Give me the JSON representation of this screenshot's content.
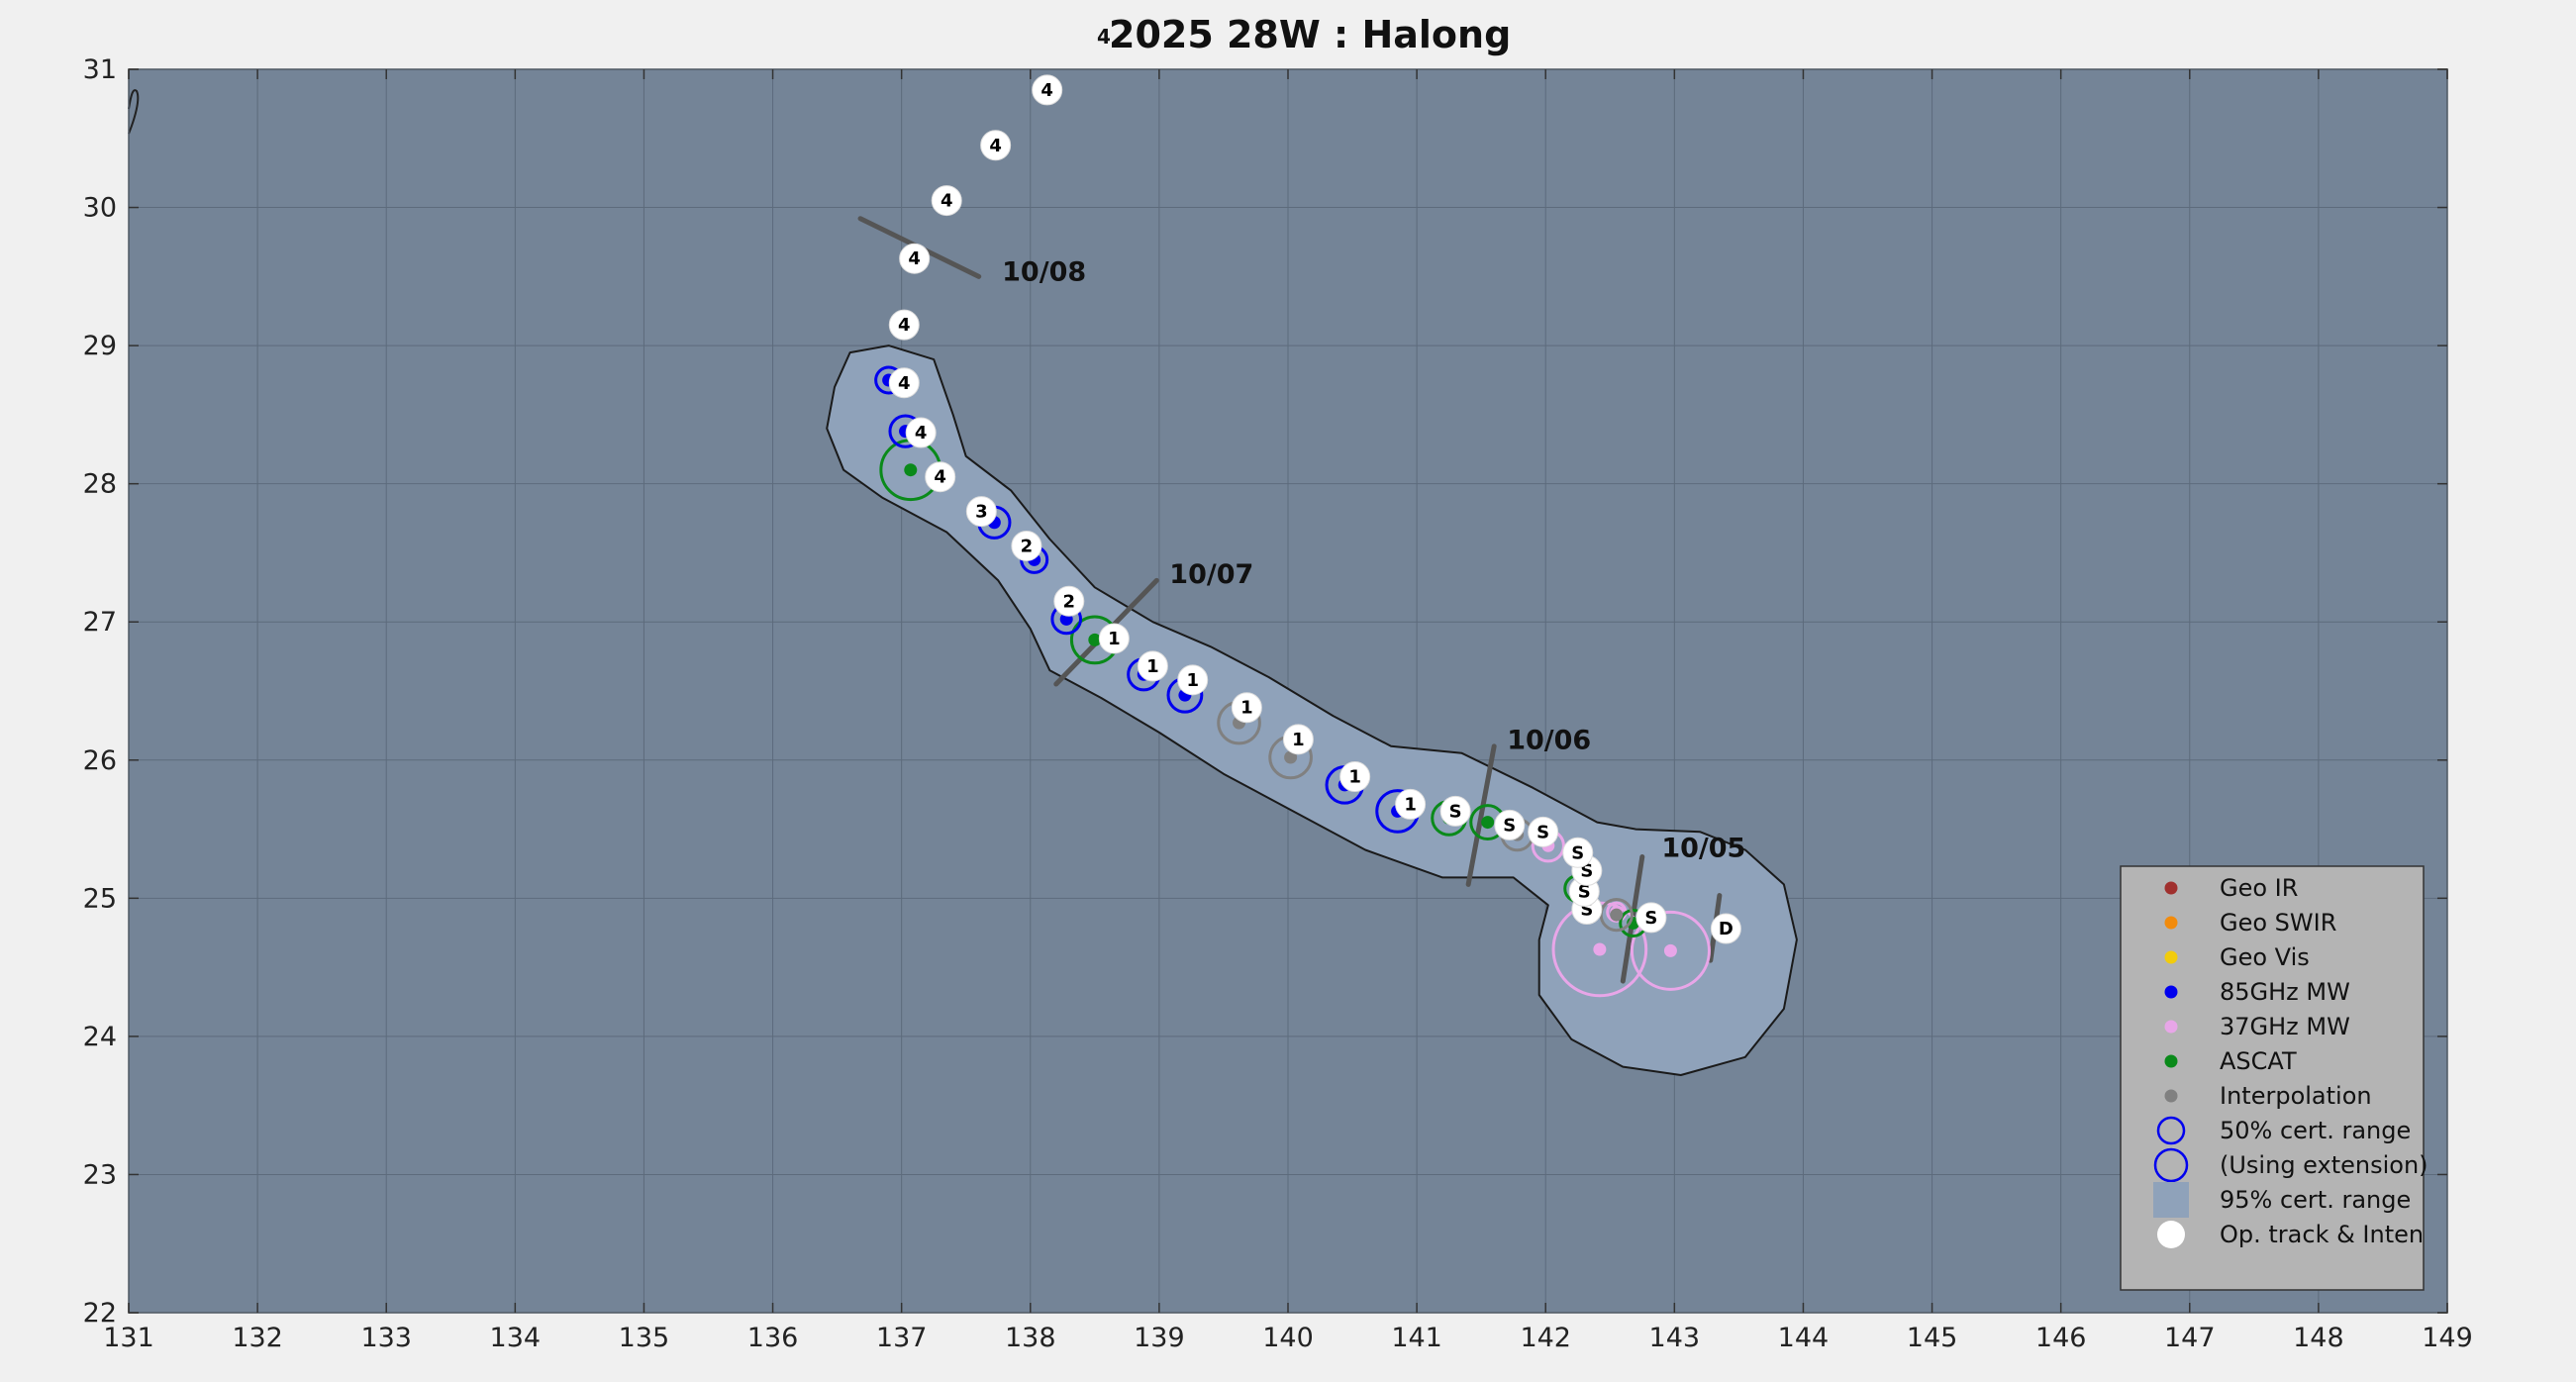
{
  "chart_data": {
    "type": "scatter",
    "title_sup": "4",
    "title": "2025  28W :  Halong",
    "xlim": [
      131,
      149
    ],
    "ylim": [
      22,
      31
    ],
    "x_ticks": [
      "131",
      "132",
      "133",
      "134",
      "135",
      "136",
      "137",
      "138",
      "139",
      "140",
      "141",
      "142",
      "143",
      "144",
      "145",
      "146",
      "147",
      "148",
      "149"
    ],
    "y_ticks": [
      "22",
      "23",
      "24",
      "25",
      "26",
      "27",
      "28",
      "29",
      "30",
      "31"
    ],
    "grid": true,
    "legend_position": "bottom-right",
    "legend": [
      {
        "label": "Geo IR",
        "symbol": "dot",
        "color": "#a0302e"
      },
      {
        "label": "Geo SWIR",
        "symbol": "dot",
        "color": "#f28b0c"
      },
      {
        "label": "Geo Vis",
        "symbol": "dot",
        "color": "#f2cc0c"
      },
      {
        "label": "85GHz MW",
        "symbol": "dot",
        "color": "#0000ee"
      },
      {
        "label": "37GHz MW",
        "symbol": "dot",
        "color": "#e8a6e8"
      },
      {
        "label": "ASCAT",
        "symbol": "dot",
        "color": "#0a8a1a"
      },
      {
        "label": "Interpolation",
        "symbol": "dot",
        "color": "#808080"
      },
      {
        "label": "50% cert. range",
        "symbol": "ring",
        "color": "#0000ee"
      },
      {
        "label": "(Using extension)",
        "symbol": "ring-large",
        "color": "#0000ee"
      },
      {
        "label": "95% cert. range",
        "symbol": "square",
        "color": "#8fa2ba"
      },
      {
        "label": "Op. track & Inten",
        "symbol": "white-dot",
        "color": "#ffffff"
      }
    ],
    "op_track": [
      {
        "lon": 143.4,
        "lat": 24.78,
        "label": "D"
      },
      {
        "lon": 142.82,
        "lat": 24.86,
        "label": "S"
      },
      {
        "lon": 142.32,
        "lat": 24.92,
        "label": "S"
      },
      {
        "lon": 142.3,
        "lat": 25.05,
        "label": "S"
      },
      {
        "lon": 142.32,
        "lat": 25.2,
        "label": "S"
      },
      {
        "lon": 142.25,
        "lat": 25.33,
        "label": "S"
      },
      {
        "lon": 141.98,
        "lat": 25.48,
        "label": "S"
      },
      {
        "lon": 141.72,
        "lat": 25.53,
        "label": "S"
      },
      {
        "lon": 141.3,
        "lat": 25.63,
        "label": "S"
      },
      {
        "lon": 140.95,
        "lat": 25.68,
        "label": "1"
      },
      {
        "lon": 140.52,
        "lat": 25.88,
        "label": "1"
      },
      {
        "lon": 140.08,
        "lat": 26.15,
        "label": "1"
      },
      {
        "lon": 139.68,
        "lat": 26.38,
        "label": "1"
      },
      {
        "lon": 139.26,
        "lat": 26.58,
        "label": "1"
      },
      {
        "lon": 138.95,
        "lat": 26.68,
        "label": "1"
      },
      {
        "lon": 138.65,
        "lat": 26.88,
        "label": "1"
      },
      {
        "lon": 138.3,
        "lat": 27.15,
        "label": "2"
      },
      {
        "lon": 137.97,
        "lat": 27.55,
        "label": "2"
      },
      {
        "lon": 137.62,
        "lat": 27.8,
        "label": "3"
      },
      {
        "lon": 137.3,
        "lat": 28.05,
        "label": "4"
      },
      {
        "lon": 137.15,
        "lat": 28.37,
        "label": "4"
      },
      {
        "lon": 137.02,
        "lat": 28.73,
        "label": "4"
      },
      {
        "lon": 137.02,
        "lat": 29.15,
        "label": "4"
      },
      {
        "lon": 137.1,
        "lat": 29.63,
        "label": "4"
      },
      {
        "lon": 137.35,
        "lat": 30.05,
        "label": "4"
      },
      {
        "lon": 137.73,
        "lat": 30.45,
        "label": "4"
      },
      {
        "lon": 138.13,
        "lat": 30.85,
        "label": "4"
      }
    ],
    "fixes": [
      {
        "lon": 142.42,
        "lat": 24.63,
        "type": "37GHz MW",
        "r": 0.36
      },
      {
        "lon": 142.97,
        "lat": 24.62,
        "type": "37GHz MW",
        "r": 0.3
      },
      {
        "lon": 142.55,
        "lat": 24.9,
        "type": "37GHz MW",
        "r": 0.07
      },
      {
        "lon": 142.02,
        "lat": 25.38,
        "type": "37GHz MW",
        "r": 0.12
      },
      {
        "lon": 142.68,
        "lat": 24.82,
        "type": "ASCAT",
        "r": 0.1
      },
      {
        "lon": 142.25,
        "lat": 25.07,
        "type": "ASCAT",
        "r": 0.1
      },
      {
        "lon": 141.55,
        "lat": 25.55,
        "type": "ASCAT",
        "r": 0.13
      },
      {
        "lon": 141.25,
        "lat": 25.58,
        "type": "ASCAT",
        "r": 0.13
      },
      {
        "lon": 138.5,
        "lat": 26.87,
        "type": "ASCAT",
        "r": 0.18
      },
      {
        "lon": 137.07,
        "lat": 28.1,
        "type": "ASCAT",
        "r": 0.23
      },
      {
        "lon": 142.55,
        "lat": 24.88,
        "type": "Interpolation",
        "r": 0.12
      },
      {
        "lon": 141.78,
        "lat": 25.46,
        "type": "Interpolation",
        "r": 0.12
      },
      {
        "lon": 140.02,
        "lat": 26.02,
        "type": "Interpolation",
        "r": 0.16
      },
      {
        "lon": 139.62,
        "lat": 26.27,
        "type": "Interpolation",
        "r": 0.16
      },
      {
        "lon": 140.85,
        "lat": 25.63,
        "type": "85GHz MW",
        "r": 0.16
      },
      {
        "lon": 140.44,
        "lat": 25.82,
        "type": "85GHz MW",
        "r": 0.14
      },
      {
        "lon": 139.2,
        "lat": 26.47,
        "type": "85GHz MW",
        "r": 0.13
      },
      {
        "lon": 138.88,
        "lat": 26.62,
        "type": "85GHz MW",
        "r": 0.12
      },
      {
        "lon": 138.28,
        "lat": 27.02,
        "type": "85GHz MW",
        "r": 0.11
      },
      {
        "lon": 138.03,
        "lat": 27.45,
        "type": "85GHz MW",
        "r": 0.1
      },
      {
        "lon": 137.72,
        "lat": 27.72,
        "type": "85GHz MW",
        "r": 0.12
      },
      {
        "lon": 137.03,
        "lat": 28.38,
        "type": "85GHz MW",
        "r": 0.12
      },
      {
        "lon": 136.9,
        "lat": 28.75,
        "type": "85GHz MW",
        "r": 0.1
      }
    ],
    "date_markers": [
      {
        "label": "10/05",
        "lon": 142.9,
        "lat": 25.0,
        "x1": 142.6,
        "y1": 24.4,
        "x2": 142.75,
        "y2": 25.3
      },
      {
        "label": "10/05",
        "lon": 143.3,
        "lat": 24.7,
        "x1": 143.28,
        "y1": 24.55,
        "x2": 143.35,
        "y2": 25.02
      },
      {
        "label": "10/06",
        "lon": 141.6,
        "lat": 25.5,
        "x1": 141.4,
        "y1": 25.1,
        "x2": 141.6,
        "y2": 26.1
      },
      {
        "label": "10/07",
        "lon": 138.7,
        "lat": 26.9,
        "x1": 138.2,
        "y1": 26.55,
        "x2": 138.98,
        "y2": 27.3
      },
      {
        "label": "10/08",
        "lon": 137.2,
        "lat": 29.7,
        "x1": 136.68,
        "y1": 29.92,
        "x2": 137.6,
        "y2": 29.5
      }
    ],
    "date_labels": [
      {
        "text": "10/05",
        "lon": 142.9,
        "lat": 25.3
      },
      {
        "text": "10/06",
        "lon": 141.7,
        "lat": 26.08
      },
      {
        "text": "10/07",
        "lon": 139.08,
        "lat": 27.28
      },
      {
        "text": "10/08",
        "lon": 137.78,
        "lat": 29.47
      }
    ],
    "cone_outline": [
      [
        136.6,
        28.95
      ],
      [
        136.9,
        29.0
      ],
      [
        137.25,
        28.9
      ],
      [
        137.4,
        28.5
      ],
      [
        137.5,
        28.2
      ],
      [
        137.85,
        27.95
      ],
      [
        138.15,
        27.6
      ],
      [
        138.5,
        27.25
      ],
      [
        138.95,
        27.0
      ],
      [
        139.4,
        26.82
      ],
      [
        139.85,
        26.6
      ],
      [
        140.35,
        26.32
      ],
      [
        140.8,
        26.1
      ],
      [
        141.35,
        26.05
      ],
      [
        141.9,
        25.8
      ],
      [
        142.4,
        25.55
      ],
      [
        142.7,
        25.5
      ],
      [
        143.2,
        25.48
      ],
      [
        143.55,
        25.35
      ],
      [
        143.85,
        25.1
      ],
      [
        143.95,
        24.7
      ],
      [
        143.85,
        24.2
      ],
      [
        143.55,
        23.85
      ],
      [
        143.05,
        23.72
      ],
      [
        142.6,
        23.78
      ],
      [
        142.2,
        23.98
      ],
      [
        141.95,
        24.3
      ],
      [
        141.95,
        24.7
      ],
      [
        142.02,
        24.95
      ],
      [
        141.75,
        25.15
      ],
      [
        141.2,
        25.15
      ],
      [
        140.6,
        25.35
      ],
      [
        140.0,
        25.65
      ],
      [
        139.5,
        25.9
      ],
      [
        139.0,
        26.2
      ],
      [
        138.55,
        26.45
      ],
      [
        138.15,
        26.65
      ],
      [
        138.0,
        26.95
      ],
      [
        137.75,
        27.3
      ],
      [
        137.35,
        27.65
      ],
      [
        136.85,
        27.9
      ],
      [
        136.55,
        28.1
      ],
      [
        136.42,
        28.4
      ],
      [
        136.48,
        28.7
      ]
    ]
  }
}
